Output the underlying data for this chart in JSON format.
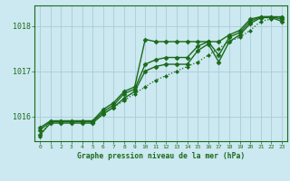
{
  "title": "Graphe pression niveau de la mer (hPa)",
  "background_color": "#cce8f0",
  "grid_color": "#aaccd8",
  "line_color": "#1a6b1a",
  "xlim": [
    -0.5,
    23.5
  ],
  "ylim": [
    1015.45,
    1018.45
  ],
  "yticks": [
    1016,
    1017,
    1018
  ],
  "xticks": [
    0,
    1,
    2,
    3,
    4,
    5,
    6,
    7,
    8,
    9,
    10,
    11,
    12,
    13,
    14,
    15,
    16,
    17,
    18,
    19,
    20,
    21,
    22,
    23
  ],
  "series": [
    {
      "x": [
        0,
        1,
        2,
        3,
        4,
        5,
        6,
        7,
        8,
        9,
        10,
        11,
        12,
        13,
        14,
        15,
        16,
        17,
        18,
        19,
        20,
        21,
        22,
        23
      ],
      "y": [
        1015.55,
        1015.9,
        1015.9,
        1015.9,
        1015.9,
        1015.9,
        1016.05,
        1016.2,
        1016.35,
        1016.5,
        1016.65,
        1016.8,
        1016.9,
        1017.0,
        1017.1,
        1017.2,
        1017.35,
        1017.5,
        1017.65,
        1017.75,
        1017.9,
        1018.1,
        1018.15,
        1018.2
      ],
      "marker": "D",
      "linestyle": ":",
      "linewidth": 0.9,
      "markersize": 2.0
    },
    {
      "x": [
        0,
        1,
        2,
        3,
        4,
        5,
        6,
        7,
        8,
        9,
        10,
        11,
        12,
        13,
        14,
        15,
        16,
        17,
        18,
        19,
        20,
        21,
        22,
        23
      ],
      "y": [
        1015.75,
        1015.9,
        1015.9,
        1015.9,
        1015.9,
        1015.9,
        1016.15,
        1016.3,
        1016.55,
        1016.65,
        1017.7,
        1017.65,
        1017.65,
        1017.65,
        1017.65,
        1017.65,
        1017.65,
        1017.65,
        1017.8,
        1017.9,
        1018.15,
        1018.2,
        1018.2,
        1018.2
      ],
      "marker": "D",
      "linestyle": "-",
      "linewidth": 1.0,
      "markersize": 2.5
    },
    {
      "x": [
        0,
        1,
        2,
        3,
        4,
        5,
        6,
        7,
        8,
        9,
        10,
        11,
        12,
        13,
        14,
        15,
        16,
        17,
        18,
        19,
        20,
        21,
        22,
        23
      ],
      "y": [
        1015.7,
        1015.88,
        1015.88,
        1015.88,
        1015.88,
        1015.88,
        1016.1,
        1016.25,
        1016.5,
        1016.6,
        1017.15,
        1017.25,
        1017.3,
        1017.3,
        1017.3,
        1017.55,
        1017.65,
        1017.35,
        1017.75,
        1017.85,
        1018.1,
        1018.2,
        1018.2,
        1018.15
      ],
      "marker": "D",
      "linestyle": "-",
      "linewidth": 1.0,
      "markersize": 2.5
    },
    {
      "x": [
        0,
        1,
        2,
        3,
        4,
        5,
        6,
        7,
        8,
        9,
        10,
        11,
        12,
        13,
        14,
        15,
        16,
        17,
        18,
        19,
        20,
        21,
        22,
        23
      ],
      "y": [
        1015.6,
        1015.85,
        1015.85,
        1015.85,
        1015.85,
        1015.85,
        1016.05,
        1016.2,
        1016.4,
        1016.55,
        1017.0,
        1017.1,
        1017.15,
        1017.15,
        1017.15,
        1017.45,
        1017.6,
        1017.2,
        1017.65,
        1017.8,
        1018.05,
        1018.18,
        1018.18,
        1018.1
      ],
      "marker": "D",
      "linestyle": "-",
      "linewidth": 1.0,
      "markersize": 2.5
    }
  ]
}
